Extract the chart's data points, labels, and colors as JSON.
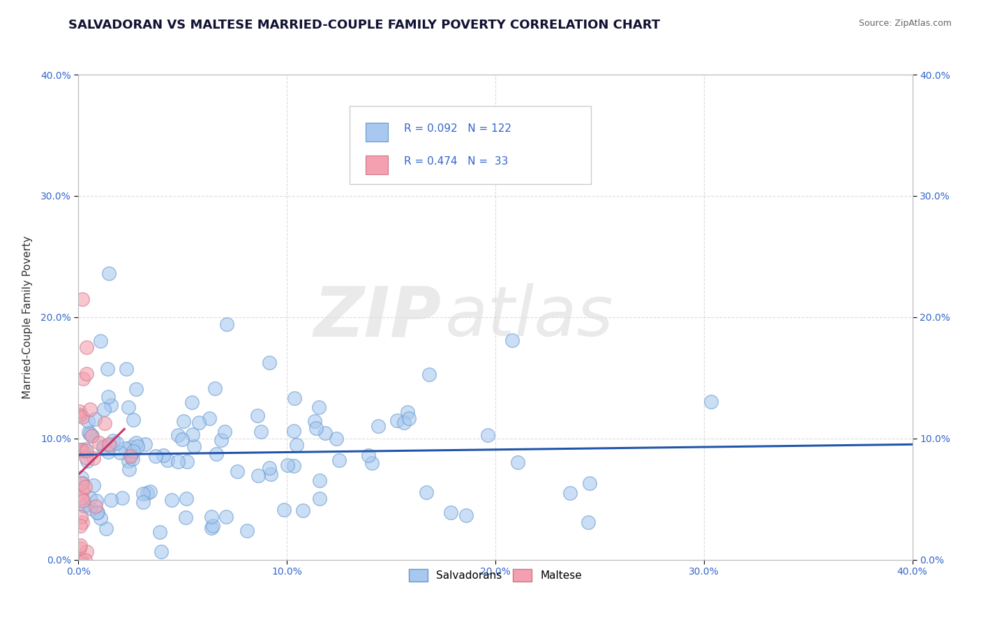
{
  "title": "SALVADORAN VS MALTESE MARRIED-COUPLE FAMILY POVERTY CORRELATION CHART",
  "source_text": "Source: ZipAtlas.com",
  "ylabel": "Married-Couple Family Poverty",
  "xlim": [
    0.0,
    0.4
  ],
  "ylim": [
    0.0,
    0.4
  ],
  "xticks": [
    0.0,
    0.1,
    0.2,
    0.3,
    0.4
  ],
  "yticks": [
    0.0,
    0.1,
    0.2,
    0.3,
    0.4
  ],
  "salvadoran_color": "#a8c8f0",
  "salvadoran_edge_color": "#6699cc",
  "maltese_color": "#f4a0b0",
  "maltese_edge_color": "#cc7788",
  "salvadoran_line_color": "#2255aa",
  "maltese_line_color": "#cc3366",
  "R_salvadoran": 0.092,
  "N_salvadoran": 122,
  "R_maltese": 0.474,
  "N_maltese": 33,
  "background_color": "#ffffff",
  "grid_color": "#cccccc",
  "watermark_zip": "ZIP",
  "watermark_atlas": "atlas",
  "title_fontsize": 13,
  "axis_label_fontsize": 11,
  "tick_fontsize": 10,
  "legend_text_color": "#3366cc",
  "legend_label_color": "#222222"
}
